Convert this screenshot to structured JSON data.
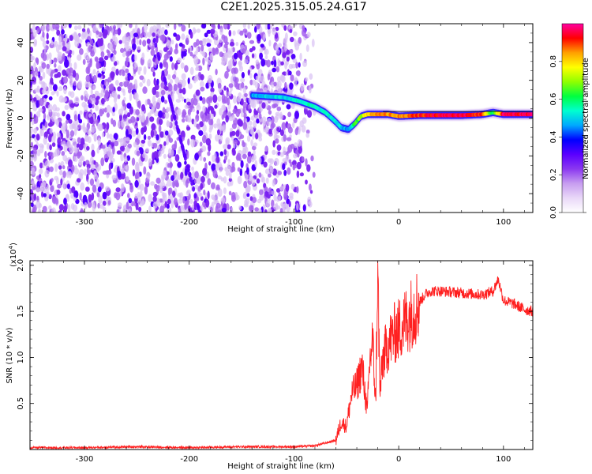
{
  "figure": {
    "title": "C2E1.2025.315.05.24.G17"
  },
  "chart_data": [
    {
      "type": "heatmap",
      "name": "spectrogram",
      "xlabel": "Height of straight line (km)",
      "ylabel": "Frequency (Hz)",
      "xlim": [
        -352,
        128
      ],
      "ylim": [
        -50,
        50
      ],
      "xticks": [
        -300,
        -200,
        -100,
        0,
        100
      ],
      "xtick_labels": [
        "-300",
        "-200",
        "-100",
        "0",
        "100"
      ],
      "yticks": [
        -40,
        -20,
        0,
        20,
        40
      ],
      "ytick_labels": [
        "-40",
        "-20",
        "0",
        "20",
        "40"
      ],
      "colorbar": {
        "label": "Normalized spectral amplitude",
        "range": [
          0,
          1
        ],
        "ticks": [
          0.0,
          0.2,
          0.4,
          0.6,
          0.8
        ],
        "tick_labels": [
          "0.0",
          "0.2",
          "0.4",
          "0.6",
          "0.8"
        ],
        "colors": [
          "#ffffff",
          "#e9d8f8",
          "#c79df0",
          "#8b38f0",
          "#5a00ff",
          "#0000ff",
          "#00a8ff",
          "#00ffd0",
          "#00ff40",
          "#90ff00",
          "#ffff00",
          "#ffa000",
          "#ff0000",
          "#ff00a0"
        ]
      },
      "noise_region_x": [
        -352,
        -80
      ],
      "signal_ridge": {
        "x": [
          -140,
          -125,
          -110,
          -95,
          -80,
          -70,
          -60,
          -55,
          -48,
          -42,
          -36,
          -30,
          -20,
          -10,
          0,
          20,
          40,
          60,
          80,
          90,
          100,
          110,
          128
        ],
        "y": [
          12,
          11.5,
          11,
          9,
          6,
          3,
          -2,
          -5,
          -6,
          -3,
          1,
          2,
          2,
          2,
          1,
          1.5,
          1.5,
          1.5,
          2,
          3,
          2,
          2,
          2
        ],
        "amplitude": [
          0.45,
          0.5,
          0.5,
          0.55,
          0.55,
          0.55,
          0.5,
          0.5,
          0.45,
          0.6,
          0.7,
          0.8,
          0.85,
          0.85,
          0.85,
          0.9,
          0.95,
          0.95,
          0.9,
          0.6,
          0.95,
          0.95,
          0.95
        ]
      }
    },
    {
      "type": "line",
      "name": "snr",
      "xlabel": "Height of straight line (km)",
      "ylabel": "SNR (10 * v/v)",
      "yscale_label": "(x10",
      "yscale_exponent": "4",
      "yscale_suffix": ")",
      "xlim": [
        -352,
        128
      ],
      "ylim": [
        0,
        2.05
      ],
      "xticks": [
        -300,
        -200,
        -100,
        0,
        100
      ],
      "xtick_labels": [
        "-300",
        "-200",
        "-100",
        "0",
        "100"
      ],
      "yticks": [
        0.5,
        1.0,
        1.5,
        2.0
      ],
      "ytick_labels": [
        "0.5",
        "1.0",
        "1.5",
        "2.0"
      ],
      "color": "#ff2020",
      "series": [
        {
          "name": "SNR",
          "x": [
            -352,
            -300,
            -250,
            -200,
            -150,
            -100,
            -80,
            -60,
            -55,
            -50,
            -45,
            -40,
            -35,
            -30,
            -28,
            -25,
            -22,
            -20,
            -18,
            -15,
            -10,
            -5,
            0,
            10,
            20,
            25,
            30,
            40,
            60,
            80,
            90,
            95,
            100,
            110,
            120,
            128
          ],
          "y": [
            0.02,
            0.02,
            0.03,
            0.02,
            0.03,
            0.03,
            0.04,
            0.1,
            0.3,
            0.25,
            0.6,
            0.7,
            0.9,
            0.4,
            0.9,
            1.2,
            0.5,
            2.0,
            0.6,
            1.0,
            1.15,
            1.25,
            1.3,
            1.45,
            1.6,
            1.68,
            1.72,
            1.72,
            1.7,
            1.68,
            1.72,
            1.85,
            1.62,
            1.58,
            1.52,
            1.5
          ]
        }
      ]
    }
  ]
}
